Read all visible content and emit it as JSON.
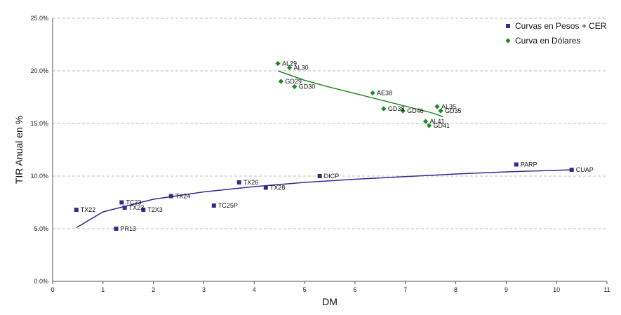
{
  "chart_data": {
    "type": "scatter",
    "xlabel": "DM",
    "ylabel": "TIR Anual en %",
    "xlim": [
      0,
      11
    ],
    "ylim": [
      0,
      25
    ],
    "x_ticks": [
      "0",
      "1",
      "2",
      "3",
      "4",
      "5",
      "6",
      "7",
      "8",
      "9",
      "10",
      "11"
    ],
    "y_ticks": [
      "0.0%",
      "5.0%",
      "10.0%",
      "15.0%",
      "20.0%",
      "25.0%"
    ],
    "grid": "horizontal dashed",
    "legend_position": "top-right",
    "series": [
      {
        "name": "Curvas en Pesos + CER",
        "color": "#2e2e8f",
        "marker": "square",
        "points": [
          {
            "label": "TX22",
            "x": 0.47,
            "y": 6.8
          },
          {
            "label": "PR13",
            "x": 1.26,
            "y": 5.0
          },
          {
            "label": "TC23",
            "x": 1.37,
            "y": 7.5
          },
          {
            "label": "TX23",
            "x": 1.43,
            "y": 7.0
          },
          {
            "label": "T2X3",
            "x": 1.8,
            "y": 6.8
          },
          {
            "label": "TX24",
            "x": 2.35,
            "y": 8.1
          },
          {
            "label": "TC25P",
            "x": 3.2,
            "y": 7.2
          },
          {
            "label": "TX26",
            "x": 3.7,
            "y": 9.4
          },
          {
            "label": "TX28",
            "x": 4.23,
            "y": 8.9
          },
          {
            "label": "DICP",
            "x": 5.3,
            "y": 10.0
          },
          {
            "label": "PARP",
            "x": 9.2,
            "y": 11.1
          },
          {
            "label": "CUAP",
            "x": 10.3,
            "y": 10.6
          }
        ],
        "trend": {
          "type": "log",
          "x": [
            0.47,
            1.0,
            2.0,
            3.0,
            4.0,
            5.0,
            6.0,
            7.0,
            8.0,
            9.0,
            10.3
          ],
          "y": [
            5.1,
            6.6,
            7.8,
            8.5,
            9.0,
            9.4,
            9.7,
            9.95,
            10.2,
            10.4,
            10.6
          ]
        }
      },
      {
        "name": "Curva en Dólares",
        "color": "#1e8a1e",
        "marker": "diamond",
        "points": [
          {
            "label": "AL29",
            "x": 4.47,
            "y": 20.7
          },
          {
            "label": "AL30",
            "x": 4.7,
            "y": 20.3
          },
          {
            "label": "GD29",
            "x": 4.53,
            "y": 19.0
          },
          {
            "label": "GD30",
            "x": 4.8,
            "y": 18.5
          },
          {
            "label": "AE38",
            "x": 6.35,
            "y": 17.9
          },
          {
            "label": "GD38",
            "x": 6.57,
            "y": 16.4
          },
          {
            "label": "GD46",
            "x": 6.95,
            "y": 16.2
          },
          {
            "label": "AL35",
            "x": 7.63,
            "y": 16.6
          },
          {
            "label": "GD35",
            "x": 7.7,
            "y": 16.2
          },
          {
            "label": "AL41",
            "x": 7.4,
            "y": 15.2
          },
          {
            "label": "GD41",
            "x": 7.47,
            "y": 14.8
          }
        ],
        "trend": {
          "type": "poly",
          "x": [
            4.47,
            5.0,
            5.5,
            6.0,
            6.5,
            7.0,
            7.5,
            7.75
          ],
          "y": [
            20.0,
            19.1,
            18.45,
            17.85,
            17.25,
            16.65,
            16.05,
            15.65
          ]
        }
      }
    ]
  }
}
